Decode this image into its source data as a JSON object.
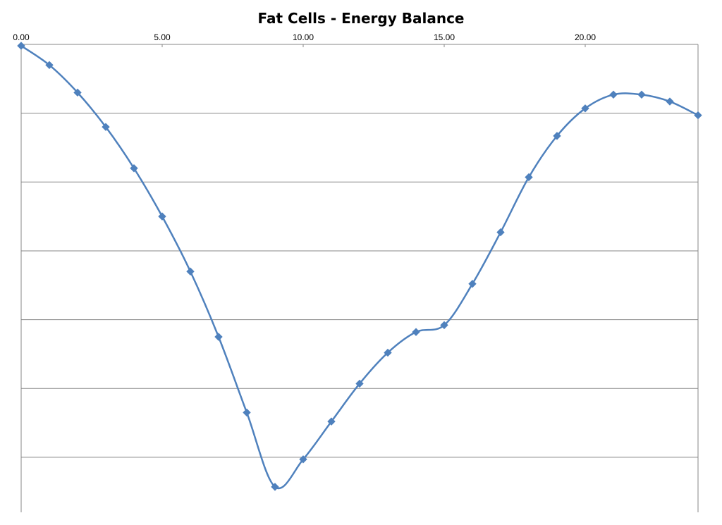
{
  "chart_data": {
    "type": "line",
    "title": "Fat Cells - Energy Balance",
    "xlabel": "",
    "ylabel": "",
    "xlim": [
      0,
      24
    ],
    "ylim": [
      -68,
      0
    ],
    "x_tick_labels": [
      "0.00",
      "5.00",
      "10.00",
      "15.00",
      "20.00"
    ],
    "x_tick_values": [
      0,
      5,
      10,
      15,
      20
    ],
    "y_gridlines": [
      -10,
      -20,
      -30,
      -40,
      -50,
      -60
    ],
    "y_tick_labels_shown": false,
    "grid": true,
    "legend": "none",
    "smooth": true,
    "marker": "diamond",
    "series": [
      {
        "color": "#4F81BD",
        "x": [
          0,
          1,
          2,
          3,
          4,
          5,
          6,
          7,
          8,
          9,
          10,
          11,
          12,
          13,
          14,
          15,
          16,
          17,
          18,
          19,
          20,
          21,
          22,
          23,
          24
        ],
        "y": [
          -0.2,
          -3,
          -7,
          -12,
          -18,
          -25,
          -33,
          -42.5,
          -53.5,
          -64.3,
          -60.3,
          -54.8,
          -49.3,
          -44.8,
          -41.8,
          -40.8,
          -34.8,
          -27.3,
          -19.3,
          -13.3,
          -9.3,
          -7.3,
          -7.3,
          -8.3,
          -10.3
        ]
      }
    ]
  }
}
